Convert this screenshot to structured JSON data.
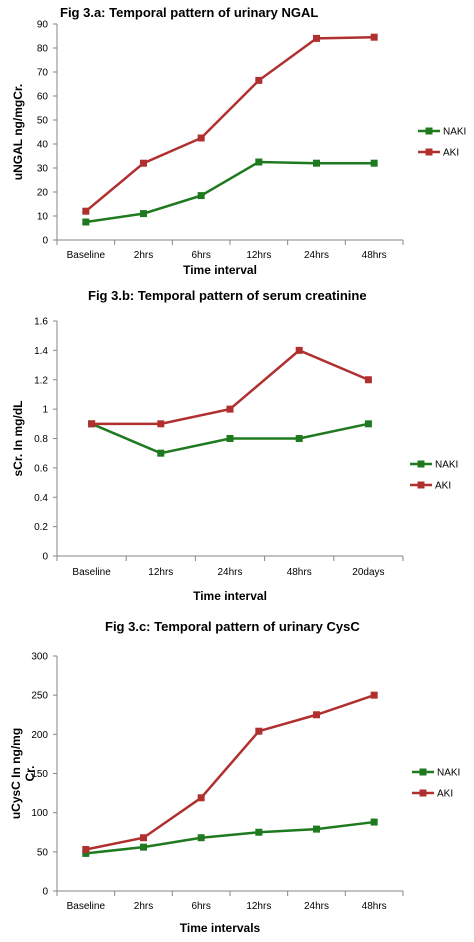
{
  "chart_data": [
    {
      "type": "line",
      "title": "Fig  3.a: Temporal pattern of urinary NGAL",
      "xlabel": "Time interval",
      "ylabel": "uNGAL ng/mgCr.",
      "categories": [
        "Baseline",
        "2hrs",
        "6hrs",
        "12hrs",
        "24hrs",
        "48hrs"
      ],
      "ylim": [
        0,
        90
      ],
      "yticks": [
        "0",
        "10",
        "20",
        "30",
        "40",
        "50",
        "60",
        "70",
        "80",
        "90"
      ],
      "grid": false,
      "legend_position": "right",
      "series": [
        {
          "name": "NAKI",
          "color": "#1f7a1f",
          "values": [
            7.5,
            11,
            18.5,
            32.5,
            32,
            32
          ]
        },
        {
          "name": "AKI",
          "color": "#b03030",
          "values": [
            12,
            32,
            42.5,
            66.5,
            84,
            84.5
          ]
        }
      ]
    },
    {
      "type": "line",
      "title": "Fig  3.b: Temporal pattern of serum creatinine",
      "xlabel": "Time interval",
      "ylabel": "sCr. In mg/dL",
      "categories": [
        "Baseline",
        "12hrs",
        "24hrs",
        "48hrs",
        "20days"
      ],
      "ylim": [
        0,
        1.6
      ],
      "yticks": [
        "0",
        "0.2",
        "0.4",
        "0.6",
        "0.8",
        "1",
        "1.2",
        "1.4",
        "1.6"
      ],
      "grid": false,
      "legend_position": "right",
      "series": [
        {
          "name": "NAKI",
          "color": "#1f7a1f",
          "values": [
            0.9,
            0.7,
            0.8,
            0.8,
            0.9
          ]
        },
        {
          "name": "AKI",
          "color": "#b03030",
          "values": [
            0.9,
            0.9,
            1.0,
            1.4,
            1.2
          ]
        }
      ]
    },
    {
      "type": "line",
      "title": "Fig 3.c:  Temporal pattern of urinary CysC",
      "xlabel": "Time intervals",
      "ylabel": "uCysC In ng/mg Cr.",
      "categories": [
        "Baseline",
        "2hrs",
        "6hrs",
        "12hrs",
        "24hrs",
        "48hrs"
      ],
      "ylim": [
        0,
        300
      ],
      "yticks": [
        "0",
        "50",
        "100",
        "150",
        "200",
        "250",
        "300"
      ],
      "grid": false,
      "legend_position": "right",
      "series": [
        {
          "name": "NAKI",
          "color": "#1f7a1f",
          "values": [
            48,
            56,
            68,
            75,
            79,
            88
          ]
        },
        {
          "name": "AKI",
          "color": "#b03030",
          "values": [
            53,
            68,
            119,
            204,
            225,
            250
          ]
        }
      ]
    }
  ]
}
